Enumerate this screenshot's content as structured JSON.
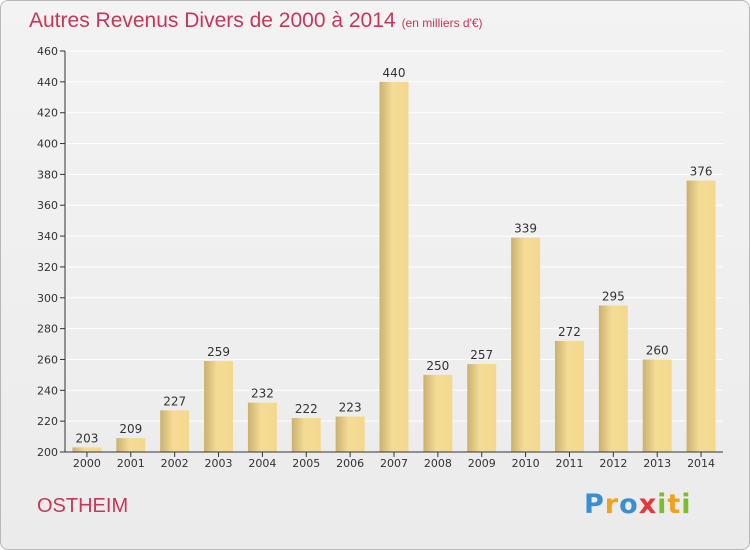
{
  "title": "Autres Revenus Divers de 2000 à 2014",
  "subtitle": "(en milliers d'€)",
  "commune": "OSTHEIM",
  "logo": {
    "icon": "proxiti-logo",
    "parts": [
      "P",
      "r",
      "o",
      "x",
      "i",
      "t",
      "i"
    ]
  },
  "colors": {
    "title": "#c8365a",
    "bar_light": "#f5dc96",
    "bar_dark": "#c9b170",
    "axis": "#333333",
    "grid": "#ffffff"
  },
  "chart_data": {
    "type": "bar",
    "title": "Autres Revenus Divers de 2000 à 2014",
    "subtitle": "(en milliers d'€)",
    "xlabel": "",
    "ylabel": "",
    "categories": [
      "2000",
      "2001",
      "2002",
      "2003",
      "2004",
      "2005",
      "2006",
      "2007",
      "2008",
      "2009",
      "2010",
      "2011",
      "2012",
      "2013",
      "2014"
    ],
    "values": [
      203,
      209,
      227,
      259,
      232,
      222,
      223,
      440,
      250,
      257,
      339,
      272,
      295,
      260,
      376
    ],
    "ylim": [
      200,
      460
    ],
    "yticks": [
      200,
      220,
      240,
      260,
      280,
      300,
      320,
      340,
      360,
      380,
      400,
      420,
      440,
      460
    ],
    "grid": true,
    "data_labels": true
  }
}
